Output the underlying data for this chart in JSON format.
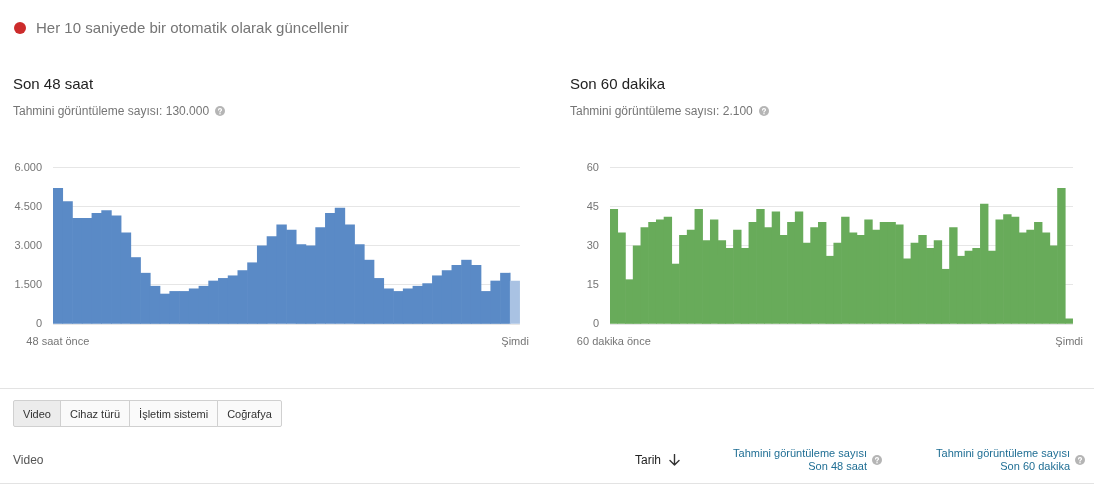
{
  "chart_data": [
    {
      "type": "other",
      "annotations": [
        "Her 10 saniyede bir otomatik olarak güncellenir"
      ]
    },
    {
      "type": "bar",
      "title": "Son 48 saat",
      "subtitle": "Tahmini görüntüleme sayısı: 130.000",
      "categories": [
        "48 saat önce",
        null,
        null,
        null,
        null,
        null,
        null,
        null,
        null,
        null,
        null,
        null,
        null,
        null,
        null,
        null,
        null,
        null,
        null,
        null,
        null,
        null,
        null,
        null,
        null,
        null,
        null,
        null,
        null,
        null,
        null,
        null,
        null,
        null,
        null,
        null,
        null,
        null,
        null,
        null,
        null,
        null,
        null,
        null,
        null,
        null,
        null,
        "Şimdi"
      ],
      "values": [
        5200,
        4700,
        4050,
        4050,
        4250,
        4350,
        4150,
        3500,
        2550,
        1950,
        1450,
        1150,
        1250,
        1250,
        1350,
        1450,
        1650,
        1750,
        1850,
        2050,
        2350,
        3000,
        3350,
        3800,
        3600,
        3050,
        3000,
        3700,
        4250,
        4450,
        3800,
        3050,
        2450,
        1750,
        1350,
        1250,
        1350,
        1450,
        1550,
        1850,
        2050,
        2250,
        2450,
        2250,
        1250,
        1650,
        1950,
        1650
      ],
      "colors": [
        "#5a8ac6",
        "#5a8ac6",
        "#5a8ac6",
        "#5a8ac6",
        "#5a8ac6",
        "#5a8ac6",
        "#5a8ac6",
        "#5a8ac6",
        "#5a8ac6",
        "#5a8ac6",
        "#5a8ac6",
        "#5a8ac6",
        "#5a8ac6",
        "#5a8ac6",
        "#5a8ac6",
        "#5a8ac6",
        "#5a8ac6",
        "#5a8ac6",
        "#5a8ac6",
        "#5a8ac6",
        "#5a8ac6",
        "#5a8ac6",
        "#5a8ac6",
        "#5a8ac6",
        "#5a8ac6",
        "#5a8ac6",
        "#5a8ac6",
        "#5a8ac6",
        "#5a8ac6",
        "#5a8ac6",
        "#5a8ac6",
        "#5a8ac6",
        "#5a8ac6",
        "#5a8ac6",
        "#5a8ac6",
        "#5a8ac6",
        "#5a8ac6",
        "#5a8ac6",
        "#5a8ac6",
        "#5a8ac6",
        "#5a8ac6",
        "#5a8ac6",
        "#5a8ac6",
        "#5a8ac6",
        "#5a8ac6",
        "#5a8ac6",
        "#5a8ac6",
        "#a9c2e3"
      ],
      "ylim": [
        0,
        6000
      ],
      "yticks": [
        0,
        {
          "value": 1500,
          "label": "1.500"
        },
        {
          "value": 3000,
          "label": "3.000"
        },
        {
          "value": 4500,
          "label": "4.500"
        },
        {
          "value": 6000,
          "label": "6.000"
        }
      ],
      "grid": "y"
    },
    {
      "type": "bar",
      "title": "Son 60 dakika",
      "subtitle": "Tahmini görüntüleme sayısı: 2.100",
      "categories": [
        "60 dakika önce",
        null,
        null,
        null,
        null,
        null,
        null,
        null,
        null,
        null,
        null,
        null,
        null,
        null,
        null,
        null,
        null,
        null,
        null,
        null,
        null,
        null,
        null,
        null,
        null,
        null,
        null,
        null,
        null,
        null,
        null,
        null,
        null,
        null,
        null,
        null,
        null,
        null,
        null,
        null,
        null,
        null,
        null,
        null,
        null,
        null,
        null,
        null,
        null,
        null,
        null,
        null,
        null,
        null,
        null,
        null,
        null,
        null,
        null,
        "Şimdi"
      ],
      "values": [
        44,
        35,
        17,
        30,
        37,
        39,
        40,
        41,
        23,
        34,
        36,
        44,
        32,
        40,
        32,
        29,
        36,
        29,
        39,
        44,
        37,
        43,
        34,
        39,
        43,
        31,
        37,
        39,
        26,
        31,
        41,
        35,
        34,
        40,
        36,
        39,
        39,
        38,
        25,
        31,
        34,
        29,
        32,
        21,
        37,
        26,
        28,
        29,
        46,
        28,
        40,
        42,
        41,
        35,
        36,
        39,
        35,
        30,
        52,
        2
      ],
      "color": "#68ab5a",
      "ylim": [
        0,
        60
      ],
      "yticks": [
        0,
        15,
        30,
        45,
        60
      ],
      "grid": "y"
    },
    {
      "type": "other",
      "annotations": [
        "Video",
        "Cihaz türü",
        "İşletim sistemi",
        "Coğrafya"
      ]
    },
    {
      "type": "other",
      "annotations": [
        "Video",
        "Tarih",
        "Tahmini görüntüleme sayısı\nSon 48 saat",
        "Tahmini görüntüleme sayısı\nSon 60 dakika"
      ]
    }
  ]
}
